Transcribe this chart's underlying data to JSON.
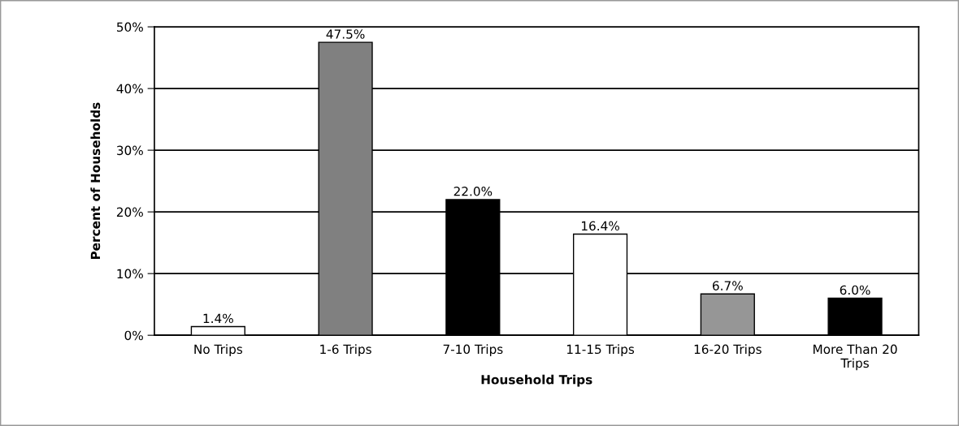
{
  "chart_data": {
    "type": "bar",
    "xlabel": "Household Trips",
    "ylabel": "Percent of Households",
    "categories": [
      "No Trips",
      "1-6 Trips",
      "7-10 Trips",
      "11-15 Trips",
      "16-20 Trips",
      "More Than 20\nTrips"
    ],
    "values": [
      1.4,
      47.5,
      22.0,
      16.4,
      6.7,
      6.0
    ],
    "colors": [
      "#ffffff",
      "#808080",
      "#000000",
      "#ffffff",
      "#969696",
      "#000000"
    ],
    "value_labels": [
      "1.4%",
      "47.5%",
      "22.0%",
      "16.4%",
      "6.7%",
      "6.0%"
    ],
    "ylim": [
      0,
      50
    ],
    "yticks": [
      {
        "value": 0,
        "label": "0%"
      },
      {
        "value": 10,
        "label": "10%"
      },
      {
        "value": 20,
        "label": "20%"
      },
      {
        "value": 30,
        "label": "30%"
      },
      {
        "value": 40,
        "label": "40%"
      },
      {
        "value": 50,
        "label": "50%"
      }
    ],
    "grid": "y"
  }
}
